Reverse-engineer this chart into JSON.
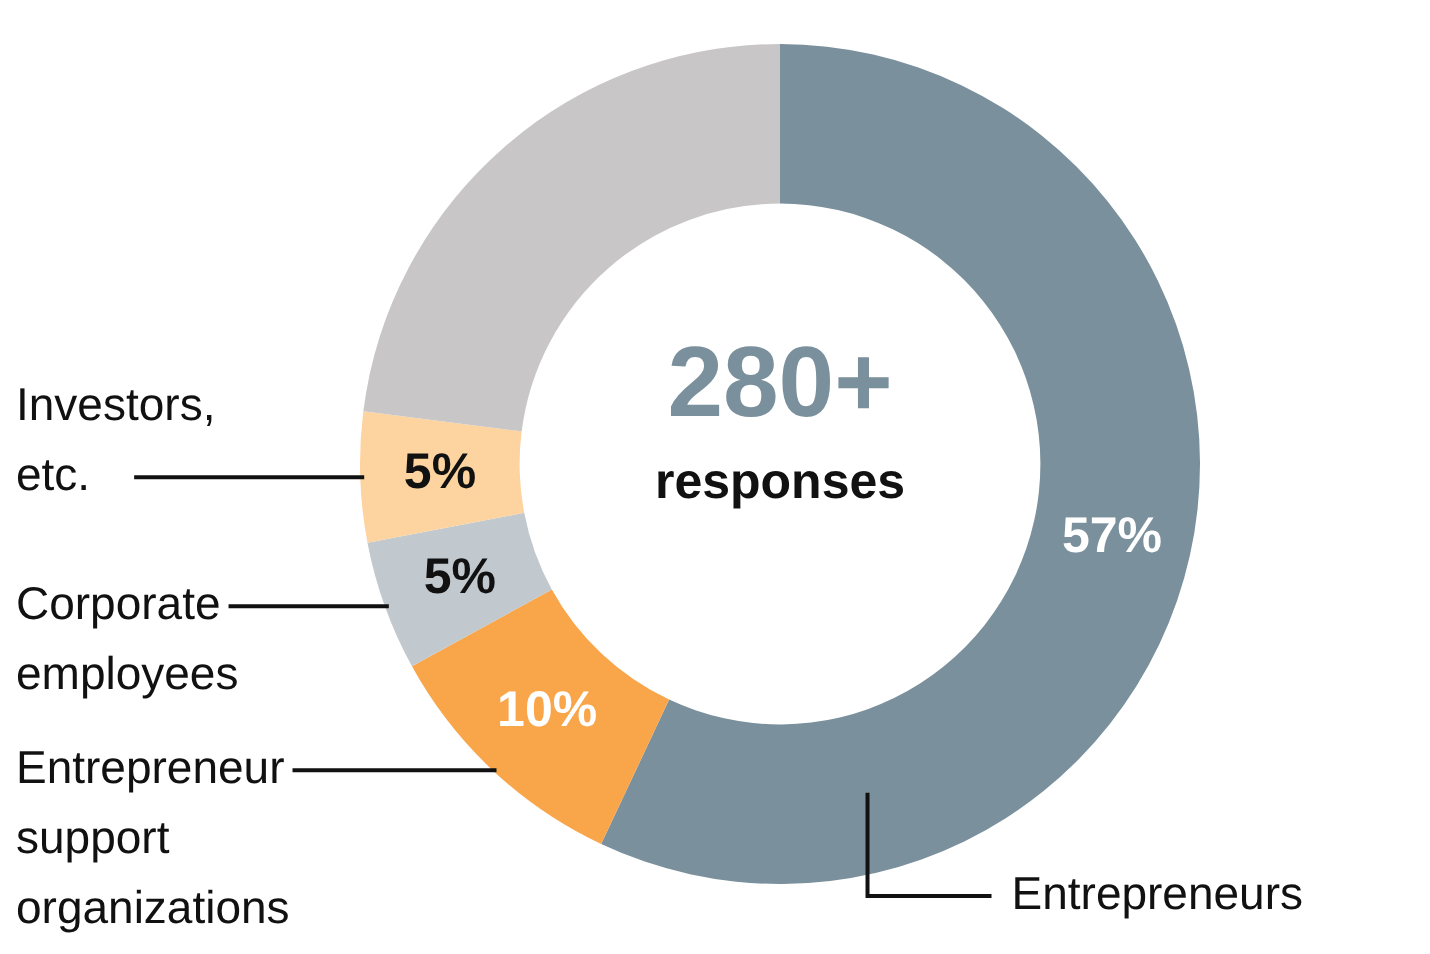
{
  "chart_data": {
    "type": "donut",
    "categories": [
      "Entrepreneurs",
      "Entrepreneur support organizations",
      "Corporate employees",
      "Investors, etc.",
      null
    ],
    "values": [
      57,
      10,
      5,
      5,
      23
    ],
    "colors": [
      "#7a909c",
      "#f9a54a",
      "#c2c9ce",
      "#fdd4a0",
      "#c8c6c7"
    ],
    "value_labels": [
      "57%",
      "10%",
      "5%",
      "5%",
      null
    ],
    "annotations": [
      "280+",
      "responses"
    ],
    "legend": false
  }
}
